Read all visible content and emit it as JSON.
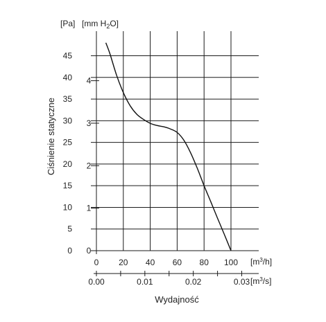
{
  "chart_data": {
    "type": "line",
    "ylabel": "Ciśnienie statyczne",
    "xlabel": "Wydajność",
    "y_unit_pa": "[Pa]",
    "y_unit_mmh2o_prefix": "[mm H",
    "y_unit_mmh2o_sub": "2",
    "y_unit_mmh2o_suffix": "O]",
    "x_unit_m3h_prefix": "[m",
    "x_unit_m3h_sup": "3",
    "x_unit_m3h_suffix": "/h]",
    "x_unit_m3s_prefix": "[m",
    "x_unit_m3s_sup": "3",
    "x_unit_m3s_suffix": "/s]",
    "xlim": [
      0,
      100
    ],
    "ylim": [
      0,
      48
    ],
    "x_ticks": [
      "0",
      "20",
      "40",
      "60",
      "80",
      "100"
    ],
    "x_ticks_values": [
      0,
      20,
      40,
      60,
      80,
      100
    ],
    "y_ticks_pa": [
      "0",
      "5",
      "10",
      "15",
      "20",
      "25",
      "30",
      "35",
      "40",
      "45"
    ],
    "y_ticks_pa_values": [
      0,
      5,
      10,
      15,
      20,
      25,
      30,
      35,
      40,
      45
    ],
    "y_ticks_mmh2o": [
      "0",
      "1",
      "2",
      "3",
      "4"
    ],
    "y_ticks_mmh2o_values": [
      0,
      1,
      2,
      3,
      4
    ],
    "x_ticks_m3s": [
      "0.00",
      "0.01",
      "0.02",
      "0.03"
    ],
    "x_ticks_m3s_values": [
      0,
      0.01,
      0.02,
      0.03
    ],
    "grid": true,
    "series": [
      {
        "x": [
          7,
          10,
          15,
          20,
          25,
          30,
          35,
          40,
          45,
          50,
          55,
          60,
          65,
          70,
          75,
          80,
          85,
          90,
          95,
          100
        ],
        "y": [
          48,
          45.5,
          40.5,
          36.5,
          33.5,
          31.5,
          30.3,
          29.4,
          28.9,
          28.6,
          28.1,
          27.3,
          25.5,
          22.6,
          19,
          15,
          11.3,
          7.5,
          3.8,
          0
        ]
      }
    ]
  }
}
